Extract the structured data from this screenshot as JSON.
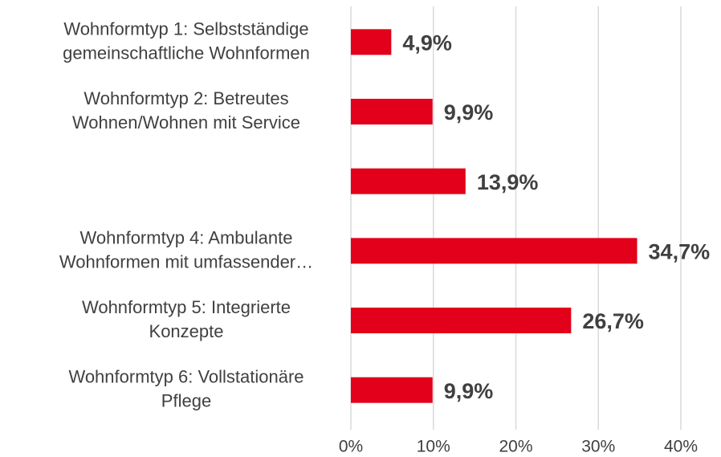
{
  "chart_data": {
    "type": "bar",
    "orientation": "horizontal",
    "categories": [
      [
        "Wohnformtyp 1: Selbstständige",
        "gemeinschaftliche Wohnformen"
      ],
      [
        "Wohnformtyp 2: Betreutes",
        "Wohnen/Wohnen mit Service"
      ],
      null,
      [
        "Wohnformtyp 4: Ambulante",
        "Wohnformen mit umfassender…"
      ],
      [
        "Wohnformtyp 5: Integrierte",
        "Konzepte"
      ],
      [
        "Wohnformtyp 6: Vollstationäre",
        "Pflege"
      ]
    ],
    "values": [
      4.9,
      9.9,
      13.9,
      34.7,
      26.7,
      9.9
    ],
    "value_labels": [
      "4,9%",
      "9,9%",
      "13,9%",
      "34,7%",
      "26,7%",
      "9,9%"
    ],
    "color": "#e2001a",
    "xlim": [
      0,
      40
    ],
    "xticks": [
      {
        "value": 0,
        "label": "0%"
      },
      {
        "value": 10,
        "label": "10%"
      },
      {
        "value": 20,
        "label": "20%"
      },
      {
        "value": 30,
        "label": "30%"
      },
      {
        "value": 40,
        "label": "40%"
      }
    ],
    "grid": true
  }
}
